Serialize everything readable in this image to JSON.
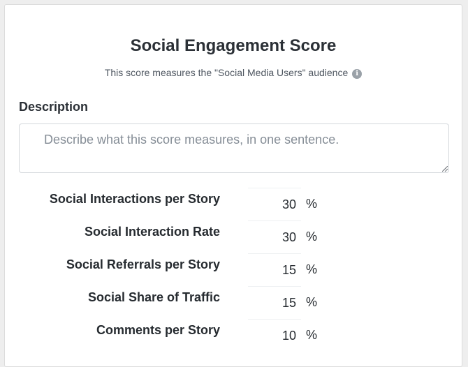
{
  "header": {
    "title": "Social Engagement Score",
    "subtitle": "This score measures the \"Social Media Users\" audience",
    "info_icon": "info-circle-icon"
  },
  "description": {
    "label": "Description",
    "value": "",
    "placeholder": "Describe what this score measures, in one sentence."
  },
  "metrics": [
    {
      "label": "Social Interactions per Story",
      "weight": "30",
      "unit": "%"
    },
    {
      "label": "Social Interaction Rate",
      "weight": "30",
      "unit": "%"
    },
    {
      "label": "Social Referrals per Story",
      "weight": "15",
      "unit": "%"
    },
    {
      "label": "Social Share of Traffic",
      "weight": "15",
      "unit": "%"
    },
    {
      "label": "Comments per Story",
      "weight": "10",
      "unit": "%"
    }
  ]
}
